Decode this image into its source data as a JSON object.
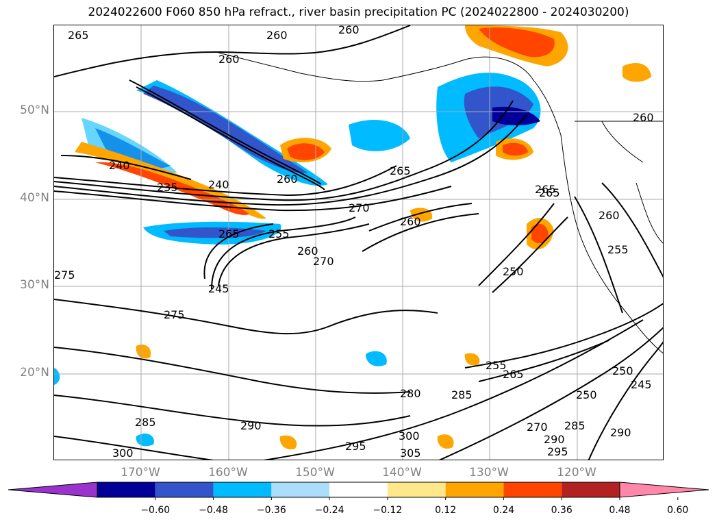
{
  "title": "2024022600 F060 850 hPa refract., river basin precipitation PC (2024022800 - 2024030200)",
  "lat_labels": [
    "50°N",
    "40°N",
    "30°N",
    "20°N"
  ],
  "lon_labels": [
    "170°W",
    "160°W",
    "150°W",
    "140°W",
    "130°W",
    "120°W"
  ],
  "colorbar": {
    "ticks": [
      "-0.60",
      "-0.48",
      "-0.36",
      "-0.24",
      "-0.12",
      "0.12",
      "0.24",
      "0.36",
      "0.48",
      "0.60"
    ],
    "colors": [
      "#9933cc",
      "#000099",
      "#3355cc",
      "#00bbff",
      "#aadefa",
      "#ffffff",
      "#ffe88a",
      "#ffa500",
      "#ff4500",
      "#b22222",
      "#ff88aa"
    ]
  },
  "contour_labels": [
    "265",
    "260",
    "260",
    "260",
    "240",
    "240",
    "235",
    "260",
    "265",
    "270",
    "265",
    "255",
    "260",
    "270",
    "250",
    "245",
    "260",
    "275",
    "255",
    "265",
    "275",
    "280",
    "285",
    "285",
    "290",
    "295",
    "300",
    "305",
    "300",
    "290",
    "295",
    "285",
    "270",
    "265",
    "260",
    "255",
    "250",
    "245",
    "250",
    "260",
    "265",
    "290"
  ]
}
